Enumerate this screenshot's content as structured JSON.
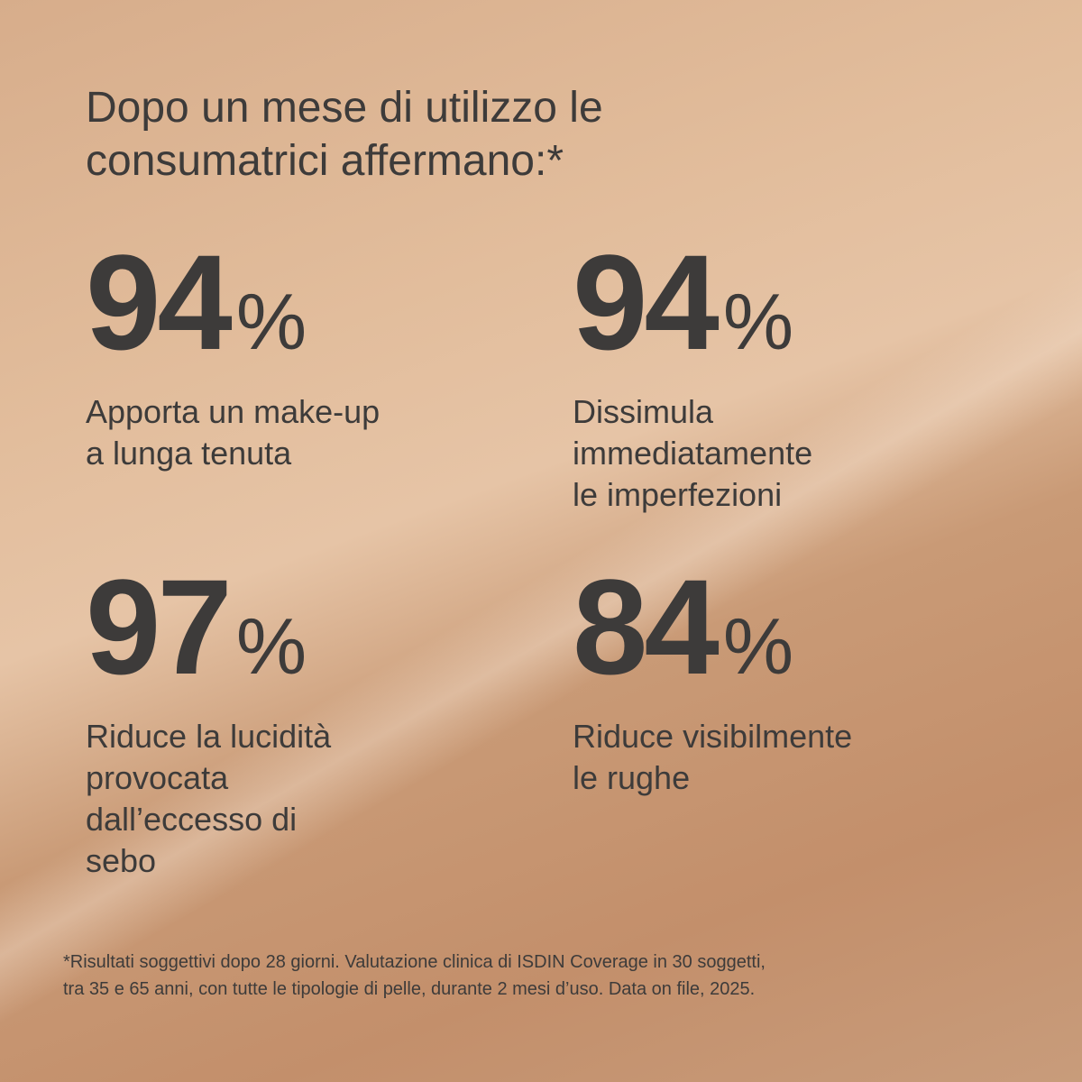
{
  "heading": {
    "lines": [
      "Dopo un mese di utilizzo le",
      "consumatrici affermano:*"
    ]
  },
  "stats": [
    {
      "number": "94",
      "unit": "%",
      "label": [
        "Apporta un make-up",
        "a lunga tenuta"
      ]
    },
    {
      "number": "94",
      "unit": "%",
      "label": [
        "Dissimula",
        "immediatamente",
        "le imperfezioni"
      ]
    },
    {
      "number": "97",
      "unit": "%",
      "label": [
        "Riduce la lucidità",
        "provocata",
        "dall’eccesso di",
        "sebo"
      ]
    },
    {
      "number": "84",
      "unit": "%",
      "label": [
        "Riduce visibilmente",
        "le rughe"
      ]
    }
  ],
  "footnote": {
    "lines": [
      "*Risultati soggettivi dopo 28 giorni. Valutazione clinica di ISDIN Coverage in 30 soggetti,",
      "tra 35 e 65 anni, con tutte le tipologie di pelle, durante 2 mesi d’uso. Data on file, 2025."
    ]
  }
}
